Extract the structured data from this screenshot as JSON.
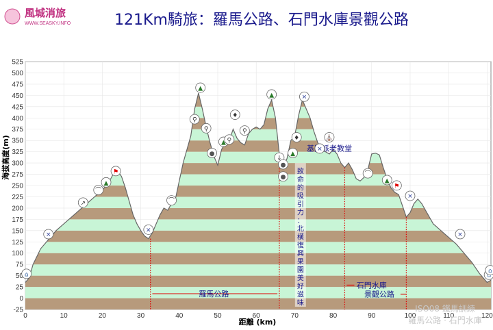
{
  "logo": {
    "name": "風城消旅",
    "url": "WWW.SEASKY.INFO"
  },
  "watermark": {
    "line1": "ISO08 鐵馬訓練",
    "line2": "羅馬公路 · 石門水庫"
  },
  "chart_data": {
    "type": "area",
    "title": "121Km騎旅：羅馬公路、石門水庫景觀公路",
    "xlabel": "距離 (km)",
    "ylabel": "海拔高度(m)",
    "xlim": [
      0,
      121
    ],
    "ylim": [
      -25,
      525
    ],
    "xticks": [
      0,
      10,
      20,
      30,
      40,
      50,
      60,
      70,
      80,
      90,
      100,
      110,
      120
    ],
    "yticks": [
      -25,
      0,
      25,
      50,
      75,
      100,
      125,
      150,
      175,
      200,
      225,
      250,
      275,
      300,
      325,
      350,
      375,
      400,
      425,
      450,
      475,
      500,
      525
    ],
    "band_colors": [
      "#b79a7c",
      "#c8f5d6"
    ],
    "profile": {
      "x": [
        0,
        1,
        2,
        4,
        6,
        8,
        10,
        12,
        14,
        16,
        18,
        20,
        21,
        22,
        23,
        24,
        25,
        26,
        27,
        28,
        29,
        30,
        31,
        32,
        33,
        34,
        35,
        36,
        37,
        38,
        39,
        40,
        41,
        42,
        43,
        44,
        45,
        46,
        47,
        48,
        49,
        50,
        51,
        52,
        53,
        54,
        55,
        56,
        57,
        58,
        59,
        60,
        61,
        62,
        63,
        64,
        65,
        66,
        67,
        68,
        69,
        70,
        71,
        72,
        73,
        74,
        75,
        76,
        77,
        78,
        79,
        80,
        81,
        82,
        83,
        84,
        85,
        86,
        87,
        88,
        89,
        90,
        91,
        92,
        93,
        94,
        95,
        96,
        97,
        98,
        99,
        100,
        101,
        102,
        103,
        104,
        105,
        106,
        108,
        110,
        112,
        114,
        116,
        118,
        119,
        120,
        121
      ],
      "y": [
        35,
        45,
        75,
        110,
        130,
        150,
        165,
        180,
        195,
        210,
        225,
        240,
        250,
        262,
        278,
        283,
        270,
        245,
        215,
        185,
        165,
        150,
        138,
        132,
        145,
        165,
        185,
        200,
        195,
        210,
        220,
        260,
        300,
        330,
        360,
        420,
        455,
        420,
        380,
        345,
        315,
        295,
        330,
        345,
        350,
        375,
        355,
        345,
        340,
        365,
        375,
        380,
        375,
        385,
        420,
        440,
        400,
        320,
        290,
        310,
        350,
        360,
        405,
        440,
        420,
        400,
        370,
        345,
        330,
        325,
        320,
        330,
        320,
        300,
        290,
        300,
        285,
        265,
        260,
        268,
        285,
        320,
        322,
        318,
        290,
        265,
        245,
        235,
        230,
        205,
        180,
        190,
        210,
        220,
        210,
        195,
        180,
        165,
        150,
        135,
        120,
        100,
        80,
        55,
        45,
        35,
        40
      ]
    },
    "annotations": [
      {
        "text": "基國派老教堂",
        "x": 79,
        "y": 333
      },
      {
        "text": "羅馬公路",
        "x": 49,
        "y": 10
      },
      {
        "text": "石門水庫",
        "x": 90,
        "y": 29
      },
      {
        "text": "景觀公路",
        "x": 92,
        "y": 9
      }
    ],
    "vertical_note": "致命的吸引力：北橫復興果園美好滋味",
    "markers": [
      {
        "x": 0.3,
        "y": 42,
        "icon": "house-icon"
      },
      {
        "x": 6,
        "y": 130,
        "icon": "cross-icon"
      },
      {
        "x": 15,
        "y": 200,
        "icon": "climb-icon"
      },
      {
        "x": 19,
        "y": 228,
        "icon": "bridge-icon"
      },
      {
        "x": 21,
        "y": 245,
        "icon": "peak-icon"
      },
      {
        "x": 23.5,
        "y": 270,
        "icon": "flag-icon"
      },
      {
        "x": 32,
        "y": 140,
        "icon": "cross-icon"
      },
      {
        "x": 38,
        "y": 205,
        "icon": "bridge-icon"
      },
      {
        "x": 44,
        "y": 385,
        "icon": "cyclist-icon"
      },
      {
        "x": 45.5,
        "y": 455,
        "icon": "peak-icon"
      },
      {
        "x": 47,
        "y": 365,
        "icon": "cyclist-icon"
      },
      {
        "x": 48.5,
        "y": 310,
        "icon": "food-icon"
      },
      {
        "x": 51.5,
        "y": 335,
        "icon": "peak-icon"
      },
      {
        "x": 53,
        "y": 340,
        "icon": "cyclist-icon"
      },
      {
        "x": 54.5,
        "y": 395,
        "icon": "walker-icon"
      },
      {
        "x": 57,
        "y": 360,
        "icon": "cyclist-icon"
      },
      {
        "x": 64,
        "y": 440,
        "icon": "peak-icon"
      },
      {
        "x": 66,
        "y": 300,
        "icon": "descent-icon"
      },
      {
        "x": 67,
        "y": 285,
        "icon": "food-icon"
      },
      {
        "x": 67,
        "y": 258,
        "icon": "food-icon"
      },
      {
        "x": 69.5,
        "y": 310,
        "icon": "peak-icon"
      },
      {
        "x": 70.5,
        "y": 345,
        "icon": "walker-icon"
      },
      {
        "x": 72.5,
        "y": 435,
        "icon": "cross-icon"
      },
      {
        "x": 76.5,
        "y": 320,
        "icon": "cross-icon"
      },
      {
        "x": 79,
        "y": 345,
        "icon": "church-icon"
      },
      {
        "x": 89,
        "y": 265,
        "icon": "bridge-icon"
      },
      {
        "x": 94,
        "y": 250,
        "icon": "peak-icon"
      },
      {
        "x": 96.5,
        "y": 238,
        "icon": "flag-icon"
      },
      {
        "x": 100,
        "y": 215,
        "icon": "cross-icon"
      },
      {
        "x": 113,
        "y": 130,
        "icon": "cross-icon"
      },
      {
        "x": 120.5,
        "y": 40,
        "icon": "house-icon"
      },
      {
        "x": 120.8,
        "y": 50,
        "icon": "house-icon"
      }
    ],
    "section_markers": [
      32.5,
      66,
      83,
      99
    ]
  }
}
